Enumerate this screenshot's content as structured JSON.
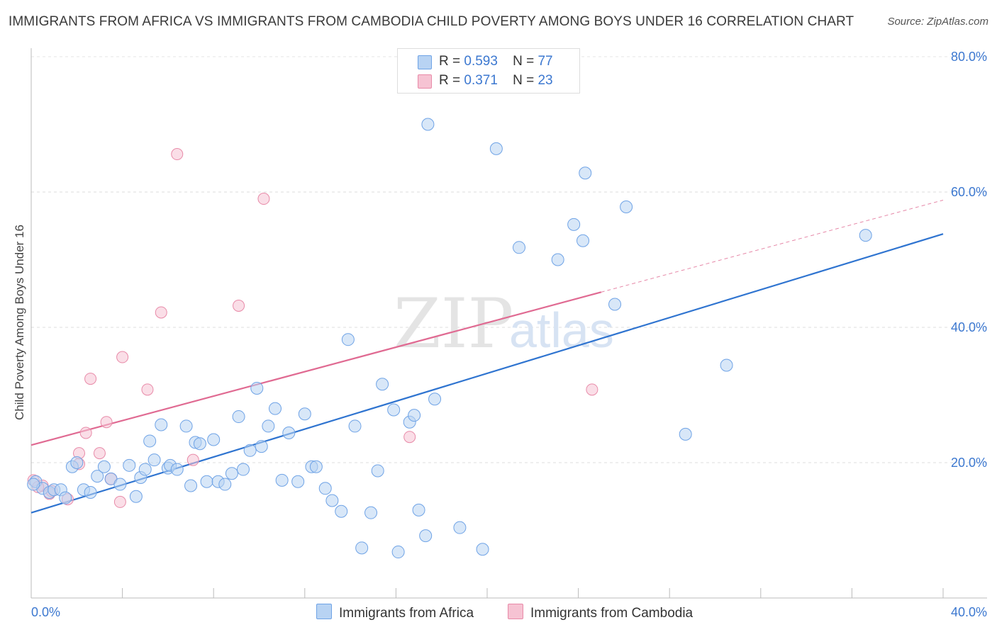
{
  "title": "IMMIGRANTS FROM AFRICA VS IMMIGRANTS FROM CAMBODIA CHILD POVERTY AMONG BOYS UNDER 16 CORRELATION CHART",
  "source": "Source: ZipAtlas.com",
  "watermark": {
    "zip": "ZIP",
    "atlas": "atlas"
  },
  "colors": {
    "africa": "#6fa3e6",
    "africa_fill": "#b8d3f3",
    "africa_line": "#2f74d0",
    "cambodia": "#e88aa8",
    "cambodia_fill": "#f6c3d3",
    "cambodia_line": "#e06a92",
    "tick": "#3c78d0"
  },
  "legend": {
    "africa": {
      "r_label": "R =",
      "r_value": "0.593",
      "n_label": "N =",
      "n_value": "77"
    },
    "cambodia": {
      "r_label": "R =",
      "r_value": "0.371",
      "n_label": "N =",
      "n_value": "23"
    }
  },
  "chart_data": {
    "type": "scatter",
    "ylabel": "Child Poverty Among Boys Under 16",
    "xlim": [
      0,
      40
    ],
    "ylim": [
      0,
      80
    ],
    "x_tick_labels": [
      "0.0%",
      "40.0%"
    ],
    "y_tick_labels": [
      "20.0%",
      "40.0%",
      "60.0%",
      "80.0%"
    ],
    "y_ticks": [
      20,
      40,
      60,
      80
    ],
    "grid": true,
    "legend_position": "top-center",
    "series": [
      {
        "name": "Immigrants from Africa",
        "trend": {
          "x": [
            0,
            40
          ],
          "y": [
            12.6,
            53.8
          ]
        },
        "points": [
          [
            0.2,
            17.2
          ],
          [
            0.5,
            16.2
          ],
          [
            0.8,
            15.6
          ],
          [
            1,
            16
          ],
          [
            1.3,
            16
          ],
          [
            1.5,
            14.8
          ],
          [
            1.8,
            19.4
          ],
          [
            2,
            20
          ],
          [
            2.3,
            16
          ],
          [
            2.6,
            15.6
          ],
          [
            2.9,
            18
          ],
          [
            3.2,
            19.4
          ],
          [
            3.5,
            17.6
          ],
          [
            3.9,
            16.8
          ],
          [
            4.3,
            19.6
          ],
          [
            4.6,
            15
          ],
          [
            4.8,
            17.8
          ],
          [
            5,
            19
          ],
          [
            5.2,
            23.2
          ],
          [
            5.4,
            20.4
          ],
          [
            5.7,
            25.6
          ],
          [
            6,
            19.2
          ],
          [
            6.1,
            19.6
          ],
          [
            6.4,
            19
          ],
          [
            6.8,
            25.4
          ],
          [
            7,
            16.6
          ],
          [
            7.2,
            23
          ],
          [
            7.4,
            22.8
          ],
          [
            7.7,
            17.2
          ],
          [
            8,
            23.4
          ],
          [
            8.2,
            17.2
          ],
          [
            8.5,
            16.8
          ],
          [
            8.8,
            18.4
          ],
          [
            9.1,
            26.8
          ],
          [
            9.3,
            19
          ],
          [
            9.6,
            21.8
          ],
          [
            9.9,
            31
          ],
          [
            10.1,
            22.4
          ],
          [
            10.4,
            25.4
          ],
          [
            10.7,
            28
          ],
          [
            11,
            17.4
          ],
          [
            11.3,
            24.4
          ],
          [
            11.7,
            17.2
          ],
          [
            12,
            27.2
          ],
          [
            12.3,
            19.4
          ],
          [
            12.5,
            19.4
          ],
          [
            12.9,
            16.2
          ],
          [
            13.2,
            14.4
          ],
          [
            13.6,
            12.8
          ],
          [
            13.9,
            38.2
          ],
          [
            14.2,
            25.4
          ],
          [
            14.5,
            7.4
          ],
          [
            14.9,
            12.6
          ],
          [
            15.2,
            18.8
          ],
          [
            15.4,
            31.6
          ],
          [
            15.9,
            27.8
          ],
          [
            16.1,
            6.8
          ],
          [
            16.6,
            26
          ],
          [
            16.8,
            27
          ],
          [
            17,
            13
          ],
          [
            17.3,
            9.2
          ],
          [
            17.7,
            29.4
          ],
          [
            17.4,
            70
          ],
          [
            18.8,
            10.4
          ],
          [
            19.8,
            7.2
          ],
          [
            20.4,
            66.4
          ],
          [
            21.4,
            51.8
          ],
          [
            23.1,
            50
          ],
          [
            23.8,
            55.2
          ],
          [
            24.2,
            52.8
          ],
          [
            24.3,
            62.8
          ],
          [
            25.6,
            43.4
          ],
          [
            26.1,
            57.8
          ],
          [
            28.7,
            24.2
          ],
          [
            30.5,
            34.4
          ],
          [
            36.6,
            53.6
          ],
          [
            0.1,
            16.8
          ]
        ]
      },
      {
        "name": "Immigrants from Cambodia",
        "trend": {
          "x": [
            0,
            25
          ],
          "y": [
            22.6,
            45.2
          ]
        },
        "trend_dashed": {
          "x": [
            25,
            40
          ],
          "y": [
            45.2,
            58.8
          ]
        },
        "points": [
          [
            0.1,
            17.4
          ],
          [
            0.5,
            16.6
          ],
          [
            0.8,
            15.4
          ],
          [
            1.6,
            14.6
          ],
          [
            2.1,
            19.8
          ],
          [
            2.1,
            21.4
          ],
          [
            2.4,
            24.4
          ],
          [
            2.6,
            32.4
          ],
          [
            3.0,
            21.4
          ],
          [
            3.3,
            26
          ],
          [
            3.5,
            17.6
          ],
          [
            3.9,
            14.2
          ],
          [
            4,
            35.6
          ],
          [
            5.1,
            30.8
          ],
          [
            5.7,
            42.2
          ],
          [
            6.4,
            65.6
          ],
          [
            7.1,
            20.4
          ],
          [
            9.1,
            43.2
          ],
          [
            10.2,
            59
          ],
          [
            16.6,
            23.8
          ],
          [
            24.6,
            30.8
          ],
          [
            0.3,
            16.4
          ],
          [
            0.9,
            15.8
          ]
        ]
      }
    ]
  }
}
